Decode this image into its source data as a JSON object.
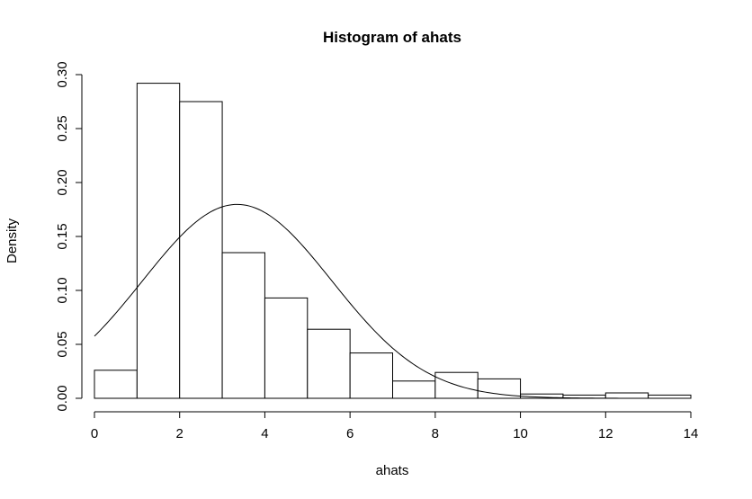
{
  "chart_data": {
    "type": "bar",
    "title": "Histogram of ahats",
    "xlabel": "ahats",
    "ylabel": "Density",
    "xlim": [
      0,
      14
    ],
    "ylim": [
      0,
      0.3
    ],
    "x_ticks": [
      0,
      2,
      4,
      6,
      8,
      10,
      12,
      14
    ],
    "x_tick_labels": [
      "0",
      "2",
      "4",
      "6",
      "8",
      "10",
      "12",
      "14"
    ],
    "y_ticks": [
      0,
      0.05,
      0.1,
      0.15,
      0.2,
      0.25,
      0.3
    ],
    "y_tick_labels": [
      "0.00",
      "0.05",
      "0.10",
      "0.15",
      "0.20",
      "0.25",
      "0.30"
    ],
    "bins": [
      {
        "x0": 0,
        "x1": 1,
        "density": 0.026
      },
      {
        "x0": 1,
        "x1": 2,
        "density": 0.292
      },
      {
        "x0": 2,
        "x1": 3,
        "density": 0.275
      },
      {
        "x0": 3,
        "x1": 4,
        "density": 0.135
      },
      {
        "x0": 4,
        "x1": 5,
        "density": 0.093
      },
      {
        "x0": 5,
        "x1": 6,
        "density": 0.064
      },
      {
        "x0": 6,
        "x1": 7,
        "density": 0.042
      },
      {
        "x0": 7,
        "x1": 8,
        "density": 0.016
      },
      {
        "x0": 8,
        "x1": 9,
        "density": 0.024
      },
      {
        "x0": 9,
        "x1": 10,
        "density": 0.018
      },
      {
        "x0": 10,
        "x1": 11,
        "density": 0.004
      },
      {
        "x0": 11,
        "x1": 12,
        "density": 0.003
      },
      {
        "x0": 12,
        "x1": 13,
        "density": 0.005
      },
      {
        "x0": 13,
        "x1": 14,
        "density": 0.003
      }
    ],
    "overlay_curve": {
      "type": "normal_density",
      "mean": 3.35,
      "sd": 2.22,
      "x_range": [
        0,
        14
      ]
    }
  }
}
